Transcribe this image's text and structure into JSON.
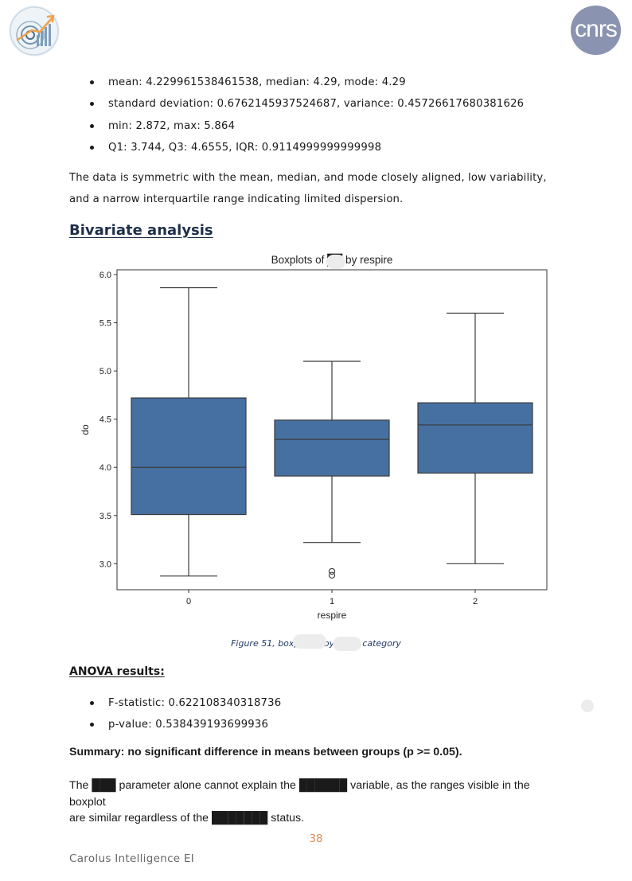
{
  "header": {
    "left_logo_icon": "chart-target-logo-icon",
    "right_logo_text": "cnrs"
  },
  "stats": [
    "mean: 4.229961538461538, median: 4.29, mode: 4.29",
    "standard deviation: 0.6762145937524687, variance: 0.45726617680381626",
    "min: 2.872, max: 5.864",
    "Q1: 3.744, Q3: 4.6555, IQR: 0.9114999999999998"
  ],
  "para1": "The data is symmetric with the mean, median, and mode closely aligned, low variability, and a narrow interquartile range indicating limited dispersion.",
  "section_heading": "Bivariate analysis",
  "chart_data": {
    "type": "boxplot",
    "title": "Boxplots of ██ by respire",
    "xlabel": "respire",
    "ylabel": "do",
    "ylim": [
      2.73,
      6.05
    ],
    "yticks": [
      "3.0",
      "3.5",
      "4.0",
      "4.5",
      "5.0",
      "5.5",
      "6.0"
    ],
    "categories": [
      "0",
      "1",
      "2"
    ],
    "color": "#4670a2",
    "boxes": [
      {
        "category": "0",
        "whisker_low": 2.872,
        "q1": 3.51,
        "median": 4.0,
        "q3": 4.72,
        "whisker_high": 5.864,
        "outliers": []
      },
      {
        "category": "1",
        "whisker_low": 3.22,
        "q1": 3.91,
        "median": 4.29,
        "q3": 4.49,
        "whisker_high": 5.1,
        "outliers": [
          2.88,
          2.92
        ]
      },
      {
        "category": "2",
        "whisker_low": 3.0,
        "q1": 3.94,
        "median": 4.44,
        "q3": 4.67,
        "whisker_high": 5.6,
        "outliers": []
      }
    ]
  },
  "caption": "Figure 51, boxplo██ by ██re category",
  "anova_heading": "ANOVA results:",
  "anova": [
    "F-statistic: 0.622108340318736",
    "p-value: 0.538439193699936"
  ],
  "summary": "Summary: no significant difference in means between groups (p >= 0.05).",
  "para2_line1": "The ███ parameter alone cannot explain the ██████ variable, as the ranges visible in the boxplot",
  "para2_line2": "are similar regardless of the ███████ status.",
  "page_number": "38",
  "footer": "Carolus Intelligence EI"
}
